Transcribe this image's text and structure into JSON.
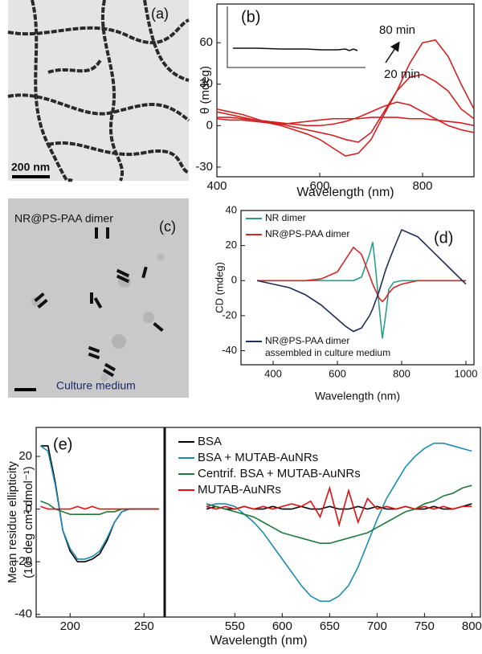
{
  "chart_data": [
    {
      "type": "line",
      "label": "(b)",
      "xlabel": "Wavelength (nm)",
      "ylabel": "θ (mdeg)",
      "x": [
        400,
        425,
        450,
        475,
        500,
        525,
        550,
        575,
        600,
        625,
        650,
        675,
        700,
        725,
        750,
        775,
        800,
        825,
        850,
        875,
        900
      ],
      "series": [
        {
          "color": "#d42020",
          "values": [
            12,
            10,
            8,
            5,
            2,
            0,
            -3,
            -6,
            -10,
            -16,
            -22,
            -20,
            -10,
            8,
            25,
            45,
            60,
            62,
            50,
            30,
            12
          ]
        },
        {
          "color": "#d42020",
          "values": [
            10,
            8,
            6,
            4,
            3,
            1,
            -1,
            -3,
            -5,
            -7,
            -10,
            -12,
            -5,
            10,
            25,
            35,
            37,
            32,
            25,
            12,
            5
          ]
        },
        {
          "color": "#d42020",
          "values": [
            6,
            6,
            5,
            4,
            3,
            2,
            1,
            0,
            0,
            1,
            3,
            6,
            10,
            14,
            17,
            15,
            10,
            5,
            0,
            -3,
            -5
          ]
        },
        {
          "color": "#d42020",
          "values": [
            5,
            4,
            4,
            3,
            2,
            1,
            2,
            3,
            4,
            5,
            5,
            5,
            6,
            6,
            6,
            5,
            5,
            4,
            3,
            2,
            0
          ]
        }
      ],
      "xlim": [
        400,
        900
      ],
      "xticks": [
        400,
        600,
        800
      ],
      "ylim": [
        -37,
        88
      ],
      "yticks": [
        -30,
        0,
        30,
        60
      ],
      "annotations": [
        "80 min",
        "20 min"
      ]
    },
    {
      "type": "line",
      "label": "(d)",
      "xlabel": "Wavelength (nm)",
      "ylabel": "CD (mdeg)",
      "x": [
        350,
        400,
        450,
        500,
        550,
        600,
        625,
        650,
        675,
        700,
        710,
        720,
        730,
        740,
        750,
        760,
        775,
        800,
        850,
        900,
        950,
        1000
      ],
      "series": [
        {
          "name": "NR dimer",
          "color": "#2a9d8f",
          "values": [
            0,
            0,
            0,
            0,
            0,
            0,
            0,
            0,
            2,
            15,
            22,
            5,
            -15,
            -33,
            -20,
            -5,
            -1,
            0,
            0,
            0,
            0,
            0
          ]
        },
        {
          "name": "NR@PS-PAA dimer",
          "color": "#d62728",
          "values": [
            0,
            0,
            0,
            0,
            1,
            5,
            12,
            19,
            15,
            3,
            -2,
            -6,
            -10,
            -12,
            -10,
            -7,
            -4,
            -2,
            0,
            0,
            0,
            0
          ]
        },
        {
          "name": "NR@PS-PAA dimer\nassembled in culture medium",
          "color": "#1f2d5a",
          "values": [
            0,
            -2,
            -4,
            -8,
            -14,
            -22,
            -26,
            -29,
            -27,
            -20,
            -16,
            -11,
            -6,
            0,
            6,
            11,
            18,
            29,
            25,
            16,
            7,
            -2
          ]
        }
      ],
      "xlim": [
        300,
        1025
      ],
      "xticks": [
        400,
        600,
        800,
        1000
      ],
      "ylim": [
        -48,
        40
      ],
      "yticks": [
        -40,
        -20,
        0,
        20,
        40
      ]
    },
    {
      "type": "line",
      "label": "(e)",
      "xlabel": "Wavelength (nm)",
      "ylabel": [
        "Mean residue ellipticity",
        "(10³ deg cm² dmol⁻¹)"
      ],
      "x": [
        180,
        185,
        190,
        195,
        200,
        205,
        210,
        215,
        220,
        225,
        230,
        235,
        240,
        245,
        250,
        255,
        260,
        520,
        530,
        540,
        550,
        560,
        570,
        580,
        590,
        600,
        610,
        620,
        630,
        640,
        650,
        660,
        670,
        680,
        690,
        700,
        710,
        720,
        730,
        740,
        750,
        760,
        770,
        780,
        790,
        800
      ],
      "series": [
        {
          "name": "BSA",
          "color": "#000000",
          "values": [
            24,
            24,
            10,
            -8,
            -16,
            -20,
            -20,
            -19,
            -17,
            -12,
            -5,
            -1,
            0,
            0,
            0,
            0,
            0,
            0,
            1,
            0,
            0,
            1,
            0,
            0,
            1,
            0,
            0,
            1,
            0,
            0,
            1,
            0,
            0,
            1,
            0,
            1,
            0,
            0,
            1,
            0,
            0,
            1,
            0,
            0,
            1,
            2
          ]
        },
        {
          "name": "BSA + MUTAB-AuNRs",
          "color": "#1b8db5",
          "values": [
            24,
            22,
            9,
            -8,
            -15,
            -19,
            -19,
            -18,
            -16,
            -11,
            -5,
            -1,
            0,
            0,
            0,
            0,
            0,
            1,
            2,
            2,
            1,
            -2,
            -5,
            -9,
            -14,
            -19,
            -24,
            -29,
            -33,
            -35,
            -35,
            -33,
            -29,
            -22,
            -13,
            -4,
            4,
            10,
            16,
            20,
            23,
            25,
            25,
            24,
            23,
            22
          ]
        },
        {
          "name": "Centrif. BSA + MUTAB-AuNRs",
          "color": "#1e7b3a",
          "values": [
            3,
            2,
            0,
            -1,
            -2,
            -2,
            -2,
            -2,
            -2,
            -1,
            -1,
            0,
            0,
            0,
            0,
            0,
            0,
            2,
            1,
            0,
            -1,
            -2,
            -3,
            -5,
            -7,
            -9,
            -10,
            -11,
            -12,
            -13,
            -13,
            -12,
            -11,
            -10,
            -9,
            -7,
            -5,
            -3,
            -1,
            0,
            2,
            3,
            5,
            6,
            8,
            9
          ]
        },
        {
          "name": "MUTAB-AuNRs",
          "color": "#e01010",
          "values": [
            1,
            0,
            0,
            0,
            0,
            1,
            0,
            1,
            0,
            0,
            0,
            0,
            0,
            0,
            0,
            0,
            0,
            1,
            0,
            1,
            0,
            1,
            0,
            1,
            0,
            1,
            2,
            1,
            3,
            -3,
            8,
            -6,
            7,
            -5,
            4,
            0,
            1,
            0,
            1,
            0,
            1,
            0,
            1,
            0,
            1,
            1
          ]
        }
      ],
      "xlim": [
        177,
        809
      ],
      "xbreak": [
        264,
        476
      ],
      "xticks": [
        200,
        250,
        550,
        600,
        650,
        700,
        750,
        800
      ],
      "ylim": [
        -41,
        31
      ],
      "yticks": [
        -40,
        -20,
        0,
        20
      ]
    }
  ],
  "micrographs": [
    {
      "label": "(a)",
      "scale_bar": "200 nm"
    },
    {
      "label": "(c)",
      "caption": "NR@PS-PAA dimer",
      "medium": "Culture medium"
    }
  ]
}
